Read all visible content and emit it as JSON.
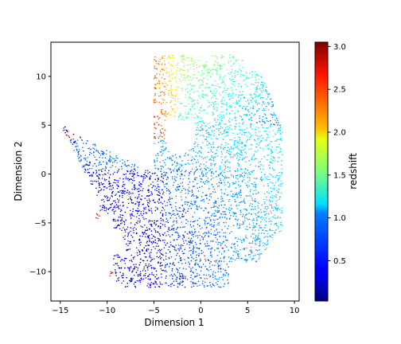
{
  "chart_data": {
    "type": "scatter",
    "title": "",
    "xlabel": "Dimension 1",
    "ylabel": "Dimension 2",
    "xlim": [
      -16,
      10.5
    ],
    "ylim": [
      -13,
      13.5
    ],
    "xticks": [
      -15,
      -10,
      -5,
      0,
      5,
      10
    ],
    "yticks": [
      -10,
      -5,
      0,
      5,
      10
    ],
    "grid": false,
    "legend": "none",
    "colorbar": {
      "label": "redshift",
      "range": [
        0.03,
        3.05
      ],
      "ticks": [
        0.5,
        1.0,
        1.5,
        2.0,
        2.5,
        3.0
      ],
      "colormap": "jet"
    },
    "point_color_note_regions": [
      {
        "region": "lower-left wedge",
        "x_range": [
          -15,
          -2
        ],
        "y_range": [
          -11.5,
          4.5
        ],
        "redshift_approx": 0.3
      },
      {
        "region": "central band",
        "x_range": [
          -4,
          6
        ],
        "y_range": [
          -6,
          0
        ],
        "redshift_approx": 0.8
      },
      {
        "region": "right lobe",
        "x_range": [
          3,
          9
        ],
        "y_range": [
          -2,
          7
        ],
        "redshift_approx": 1.1
      },
      {
        "region": "upper fan",
        "x_range": [
          -2,
          7
        ],
        "y_range": [
          5,
          12
        ],
        "redshift_approx": 1.5
      },
      {
        "region": "upper-left arc",
        "x_range": [
          -5,
          -1
        ],
        "y_range": [
          4,
          11
        ],
        "redshift_approx": 2.2
      }
    ],
    "series": [
      {
        "values_sample": [
          {
            "x": -14.5,
            "y": 4.6,
            "z": 0.45
          },
          {
            "x": -13.5,
            "y": 3.2,
            "z": 0.35
          },
          {
            "x": -12.0,
            "y": 1.0,
            "z": 0.3
          },
          {
            "x": -10.5,
            "y": -3.5,
            "z": 0.25
          },
          {
            "x": -9.0,
            "y": -8.5,
            "z": 0.3
          },
          {
            "x": -7.5,
            "y": -10.8,
            "z": 0.25
          },
          {
            "x": -5.0,
            "y": -11.2,
            "z": 0.3
          },
          {
            "x": -2.0,
            "y": -10.5,
            "z": 0.4
          },
          {
            "x": 2.0,
            "y": -9.5,
            "z": 0.55
          },
          {
            "x": 6.0,
            "y": -6.5,
            "z": 0.9
          },
          {
            "x": 8.2,
            "y": -3.5,
            "z": 1.0
          },
          {
            "x": 8.5,
            "y": 4.5,
            "z": 1.1
          },
          {
            "x": 6.0,
            "y": 8.0,
            "z": 1.2
          },
          {
            "x": 2.0,
            "y": 11.0,
            "z": 1.45
          },
          {
            "x": -2.0,
            "y": 12.0,
            "z": 1.6
          },
          {
            "x": -4.5,
            "y": 9.0,
            "z": 1.9
          },
          {
            "x": -5.0,
            "y": 7.5,
            "z": 2.3
          },
          {
            "x": -4.2,
            "y": 4.0,
            "z": 2.5
          },
          {
            "x": -9.5,
            "y": -10.2,
            "z": 2.6
          },
          {
            "x": -11.0,
            "y": -4.3,
            "z": 2.7
          }
        ]
      }
    ]
  }
}
